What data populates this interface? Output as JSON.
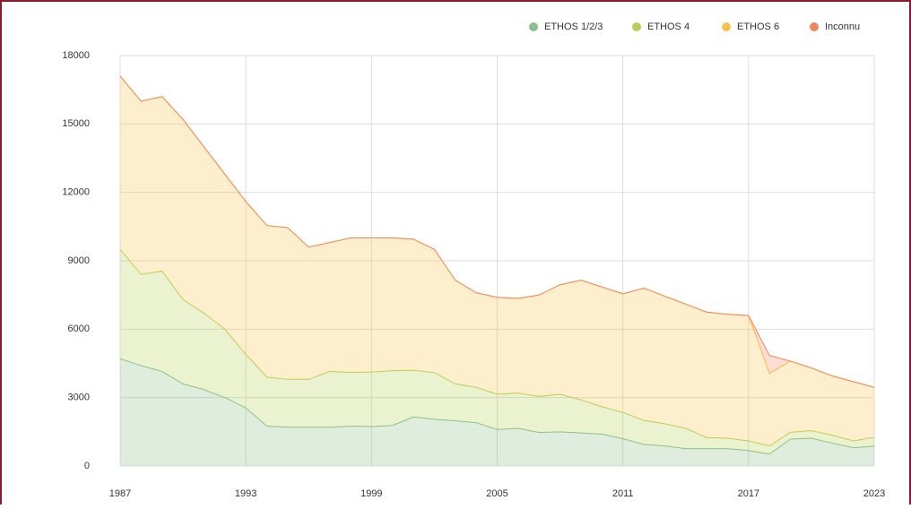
{
  "chart_data": {
    "type": "stacked_area",
    "x": [
      1987,
      1988,
      1989,
      1990,
      1991,
      1992,
      1993,
      1994,
      1995,
      1996,
      1997,
      1998,
      1999,
      2000,
      2001,
      2002,
      2003,
      2004,
      2005,
      2006,
      2007,
      2008,
      2009,
      2010,
      2011,
      2012,
      2013,
      2014,
      2015,
      2016,
      2017,
      2018,
      2019,
      2020,
      2021,
      2022,
      2023
    ],
    "xlim": [
      1987,
      2023
    ],
    "xticks": [
      1987,
      1993,
      1999,
      2005,
      2011,
      2017,
      2023
    ],
    "ylim": [
      0,
      18000
    ],
    "yticks": [
      0,
      3000,
      6000,
      9000,
      12000,
      15000,
      18000
    ],
    "grid": true,
    "legend": "top-right",
    "series": [
      {
        "name": "ETHOS 1/2/3",
        "color": "#88c08a",
        "values": [
          4700,
          4400,
          4150,
          3600,
          3350,
          3000,
          2550,
          1750,
          1700,
          1700,
          1700,
          1750,
          1730,
          1780,
          2150,
          2050,
          1980,
          1900,
          1600,
          1650,
          1470,
          1500,
          1450,
          1400,
          1200,
          950,
          880,
          760,
          760,
          760,
          680,
          520,
          1180,
          1220,
          1000,
          800,
          870
        ]
      },
      {
        "name": "ETHOS 4",
        "color": "#b7cf56",
        "values": [
          4800,
          4000,
          4400,
          3700,
          3350,
          3000,
          2350,
          2150,
          2100,
          2100,
          2450,
          2350,
          2390,
          2400,
          2050,
          2050,
          1620,
          1550,
          1550,
          1550,
          1580,
          1650,
          1450,
          1200,
          1150,
          1050,
          970,
          890,
          490,
          460,
          420,
          360,
          300,
          330,
          350,
          300,
          390
        ]
      },
      {
        "name": "ETHOS 6",
        "color": "#f7c250",
        "values": [
          7600,
          7600,
          7650,
          7900,
          7300,
          6800,
          6700,
          6650,
          6650,
          5800,
          5650,
          5900,
          5880,
          5820,
          5750,
          5400,
          4550,
          4150,
          4250,
          4150,
          4450,
          4800,
          5250,
          5250,
          5200,
          5800,
          5600,
          5450,
          5500,
          5430,
          5500,
          3170,
          3120,
          2750,
          2600,
          2600,
          2190
        ]
      },
      {
        "name": "Inconnu",
        "color": "#f0875a",
        "values": [
          0,
          0,
          0,
          0,
          0,
          0,
          0,
          0,
          0,
          0,
          0,
          0,
          0,
          0,
          0,
          0,
          0,
          0,
          0,
          0,
          0,
          0,
          0,
          0,
          0,
          0,
          0,
          0,
          0,
          0,
          0,
          800,
          0,
          0,
          0,
          0,
          0
        ]
      }
    ]
  }
}
